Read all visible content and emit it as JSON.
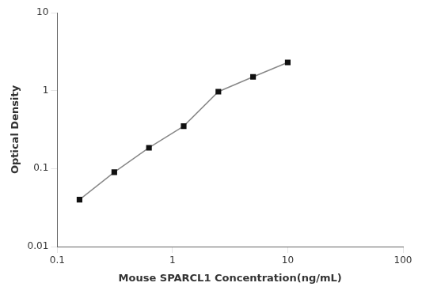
{
  "chart_data": {
    "type": "line",
    "x": [
      0.156,
      0.3125,
      0.625,
      1.25,
      2.5,
      5.0,
      10.0
    ],
    "values": [
      0.04,
      0.09,
      0.185,
      0.35,
      0.97,
      1.5,
      2.3
    ],
    "xlabel": "Mouse SPARCL1 Concentration(ng/mL)",
    "ylabel": "Optical Density",
    "xlim": [
      0.1,
      100
    ],
    "ylim": [
      0.01,
      10
    ],
    "xticks": [
      0.1,
      1,
      10,
      100
    ],
    "yticks": [
      0.01,
      0.1,
      1,
      10
    ],
    "log": true,
    "grid": false,
    "color": "#888888",
    "colors": [
      "#111111",
      "#111111",
      "#111111",
      "#111111",
      "#111111",
      "#111111",
      "#111111"
    ],
    "marker": "square"
  }
}
